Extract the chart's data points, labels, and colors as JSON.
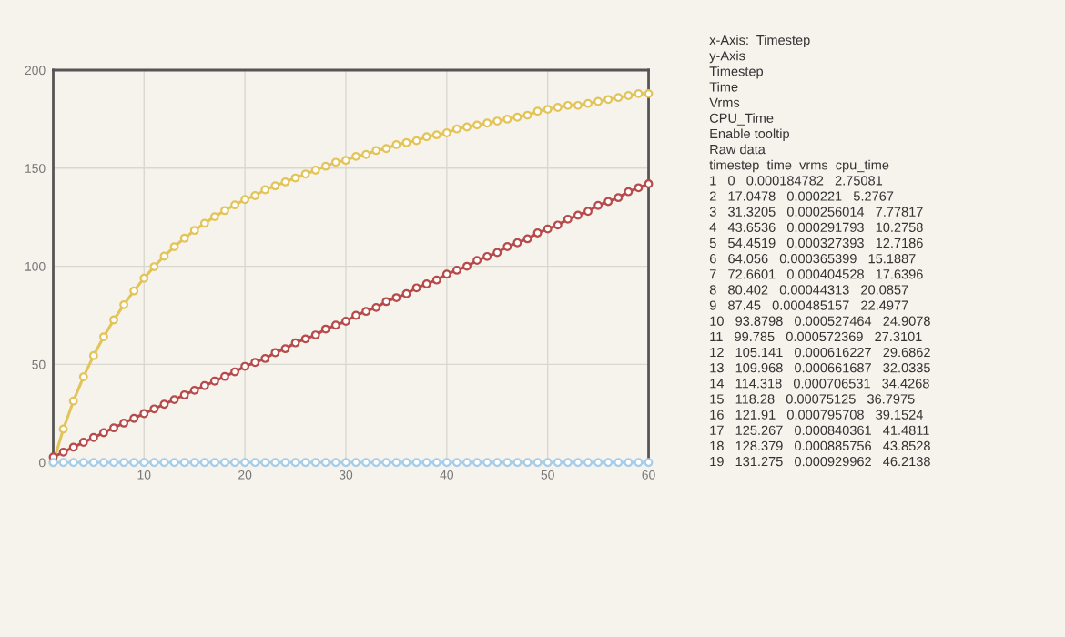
{
  "chart_data": {
    "type": "line",
    "x": [
      1,
      2,
      3,
      4,
      5,
      6,
      7,
      8,
      9,
      10,
      11,
      12,
      13,
      14,
      15,
      16,
      17,
      18,
      19,
      20,
      21,
      22,
      23,
      24,
      25,
      26,
      27,
      28,
      29,
      30,
      31,
      32,
      33,
      34,
      35,
      36,
      37,
      38,
      39,
      40,
      41,
      42,
      43,
      44,
      45,
      46,
      47,
      48,
      49,
      50,
      51,
      52,
      53,
      54,
      55,
      56,
      57,
      58,
      59,
      60
    ],
    "series": [
      {
        "color": "#e3c45a",
        "values": [
          0,
          17.0478,
          31.3205,
          43.6536,
          54.4519,
          64.056,
          72.6601,
          80.402,
          87.45,
          93.8798,
          99.785,
          105.141,
          109.968,
          114.318,
          118.28,
          121.91,
          125.267,
          128.379,
          131.275,
          134,
          136,
          139,
          141,
          143,
          145,
          147,
          149,
          151,
          153,
          154,
          156,
          157,
          159,
          160,
          162,
          163,
          164,
          166,
          167,
          168,
          170,
          171,
          172,
          173,
          174,
          175,
          176,
          177,
          179,
          180,
          181,
          182,
          182,
          183,
          184,
          185,
          186,
          187,
          188,
          188
        ]
      },
      {
        "color": "#b84a4a",
        "values": [
          2.75081,
          5.2767,
          7.77817,
          10.2758,
          12.7186,
          15.1887,
          17.6396,
          20.0857,
          22.4977,
          24.9078,
          27.3101,
          29.6862,
          32.0335,
          34.4268,
          36.7975,
          39.1524,
          41.4811,
          43.8528,
          46.2138,
          49,
          51,
          53,
          56,
          58,
          61,
          63,
          65,
          68,
          70,
          72,
          75,
          77,
          79,
          82,
          84,
          86,
          89,
          91,
          93,
          96,
          98,
          100,
          103,
          105,
          107,
          110,
          112,
          114,
          117,
          119,
          121,
          124,
          126,
          128,
          131,
          133,
          135,
          138,
          140,
          142
        ]
      },
      {
        "color": "#a8cde8",
        "values": [
          0.000184782,
          0.000221,
          0.000256014,
          0.000291793,
          0.000327393,
          0.000365399,
          0.000404528,
          0.00044313,
          0.000485157,
          0.000527464,
          0.000572369,
          0.000616227,
          0.000661687,
          0.000706531,
          0.00075125,
          0.000795708,
          0.000840361,
          0.000885756,
          0.000929962,
          0,
          0,
          0,
          0,
          0,
          0,
          0,
          0,
          0,
          0,
          0,
          0,
          0,
          0,
          0,
          0,
          0,
          0,
          0,
          0,
          0,
          0,
          0,
          0,
          0,
          0,
          0,
          0,
          0,
          0,
          0,
          0,
          0,
          0,
          0,
          0,
          0,
          0,
          0,
          0,
          0
        ]
      }
    ],
    "xlim": [
      1,
      60
    ],
    "xticks": [
      10,
      20,
      30,
      40,
      50,
      60
    ],
    "ylim": [
      0,
      200
    ],
    "yticks": [
      0,
      50,
      100,
      150,
      200
    ],
    "grid": true,
    "marker": "circle",
    "line_style": "solid",
    "annotations": [
      "x-Axis:  Timestep",
      "y-Axis",
      "Timestep",
      "Time",
      "Vrms",
      "CPU_Time",
      "Enable tooltip",
      "Raw data",
      "timestep  time  vrms  cpu_time",
      "1   0   0.000184782   2.75081",
      "2   17.0478   0.000221   5.2767",
      "3   31.3205   0.000256014   7.77817",
      "4   43.6536   0.000291793   10.2758",
      "5   54.4519   0.000327393   12.7186",
      "6   64.056   0.000365399   15.1887",
      "7   72.6601   0.000404528   17.6396",
      "8   80.402   0.00044313   20.0857",
      "9   87.45   0.000485157   22.4977",
      "10   93.8798   0.000527464   24.9078",
      "11   99.785   0.000572369   27.3101",
      "12   105.141   0.000616227   29.6862",
      "13   109.968   0.000661687   32.0335",
      "14   114.318   0.000706531   34.4268",
      "15   118.28   0.00075125   36.7975",
      "16   121.91   0.000795708   39.1524",
      "17   125.267   0.000840361   41.4811",
      "18   128.379   0.000885756   43.8528",
      "19   131.275   0.000929962   46.2138"
    ]
  }
}
